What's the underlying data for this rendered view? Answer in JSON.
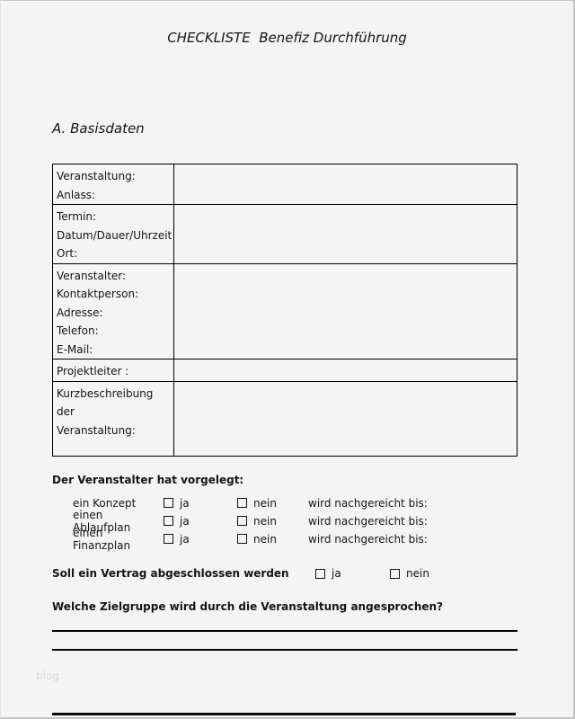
{
  "page": {
    "title": "CHECKLISTE  Benefiz Durchführung",
    "section_heading": "A. Basisdaten",
    "watermark": "blog",
    "colors": {
      "background": "#f4f4f4",
      "text": "#141414",
      "table_border": "#000000",
      "watermark": "#dbdbdb"
    }
  },
  "basisdaten_table": {
    "rows": [
      {
        "lines": [
          "Veranstaltung:",
          "Anlass:"
        ],
        "value": ""
      },
      {
        "lines": [
          "Termin:",
          "Datum/Dauer/Uhrzeit",
          "Ort:"
        ],
        "value": ""
      },
      {
        "lines": [
          "Veranstalter:",
          "Kontaktperson:",
          "Adresse:",
          "Telefon:",
          "E-Mail:"
        ],
        "value": ""
      },
      {
        "lines": [
          "Projektleiter :"
        ],
        "value": ""
      },
      {
        "lines": [
          "Kurzbeschreibung der",
          "Veranstaltung:"
        ],
        "value": ""
      }
    ]
  },
  "vorgelegt": {
    "heading": "Der Veranstalter hat vorgelegt:",
    "ja_label": "ja",
    "nein_label": "nein",
    "note_label": "wird nachgereicht bis:",
    "items": [
      {
        "label": "ein Konzept"
      },
      {
        "label": "einen Ablaufplan"
      },
      {
        "label": "einen Finanzplan"
      }
    ]
  },
  "vertrag": {
    "question": "Soll ein Vertrag abgeschlossen werden",
    "ja_label": "ja",
    "nein_label": "nein"
  },
  "zielgruppe": {
    "question": "Welche Zielgruppe wird durch die Veranstaltung angesprochen?"
  }
}
